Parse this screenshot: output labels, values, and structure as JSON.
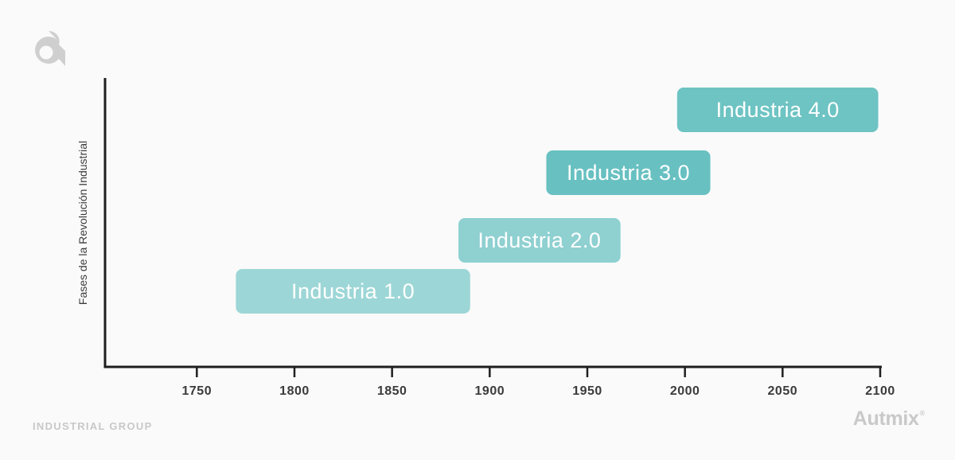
{
  "branding": {
    "logo_icon": "autmix-a-logo-icon",
    "footer_text": "INDUSTRIAL GROUP",
    "brand_name": "Autmix",
    "brand_mark": "®"
  },
  "colors": {
    "axis": "#1f1f1f",
    "industria_1": "#9dd6d6",
    "industria_2": "#8fd0d1",
    "industria_3": "#68c0c1",
    "industria_4": "#6ec3c3",
    "logo": "#cfcfcf",
    "brand": "#c9c9c9"
  },
  "chart_data": {
    "type": "bar",
    "orientation": "horizontal-range",
    "title": "",
    "xlabel": "",
    "ylabel": "Fases de la Revolución Industrial",
    "xlim": [
      1703,
      2100
    ],
    "x_ticks": [
      1750,
      1800,
      1850,
      1900,
      1950,
      2000,
      2050,
      2100
    ],
    "grid": false,
    "legend": "none",
    "series": [
      {
        "name": "Industria 1.0",
        "start": 1770,
        "end": 1890
      },
      {
        "name": "Industria 2.0",
        "start": 1884,
        "end": 1967
      },
      {
        "name": "Industria 3.0",
        "start": 1929,
        "end": 2013
      },
      {
        "name": "Industria 4.0",
        "start": 1996,
        "end": 2099
      }
    ]
  }
}
